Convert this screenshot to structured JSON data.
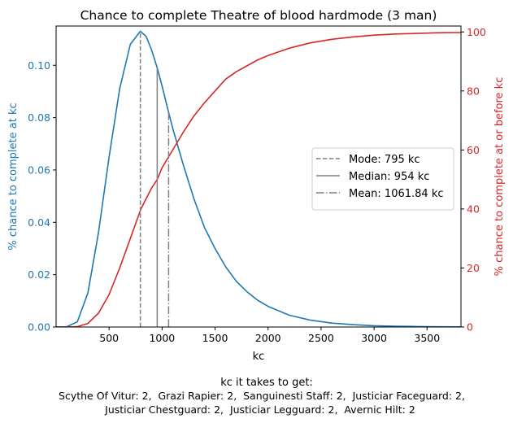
{
  "chart_data": {
    "type": "line",
    "title": "Chance to complete Theatre of blood hardmode (3 man)",
    "xlabel": "kc",
    "ylabel_left": "% chance to complete at kc",
    "ylabel_right": "% chance to complete at or before kc",
    "xlim": [
      0,
      3820
    ],
    "ylim_left": [
      0,
      0.115
    ],
    "ylim_right": [
      0,
      102
    ],
    "x_ticks": [
      500,
      1000,
      1500,
      2000,
      2500,
      3000,
      3500
    ],
    "y_left_ticks": [
      "0.00",
      "0.02",
      "0.04",
      "0.06",
      "0.08",
      "0.10"
    ],
    "y_right_ticks": [
      0,
      20,
      40,
      60,
      80,
      100
    ],
    "series": [
      {
        "axis": "left",
        "color": "#1f77b4",
        "x": [
          0,
          100,
          200,
          300,
          400,
          500,
          600,
          700,
          795,
          850,
          900,
          954,
          1000,
          1062,
          1100,
          1200,
          1300,
          1400,
          1500,
          1600,
          1700,
          1800,
          1900,
          2000,
          2200,
          2400,
          2600,
          2800,
          3000,
          3200,
          3400,
          3600,
          3820
        ],
        "y": [
          0,
          0.0001,
          0.002,
          0.013,
          0.036,
          0.065,
          0.091,
          0.108,
          0.113,
          0.111,
          0.106,
          0.099,
          0.092,
          0.082,
          0.076,
          0.062,
          0.049,
          0.038,
          0.03,
          0.023,
          0.0175,
          0.0135,
          0.0103,
          0.0079,
          0.0045,
          0.0026,
          0.0015,
          0.0009,
          0.0005,
          0.0003,
          0.00018,
          0.0001,
          5e-05
        ]
      },
      {
        "axis": "right",
        "color": "#d62728",
        "x": [
          0,
          100,
          200,
          300,
          400,
          500,
          600,
          700,
          800,
          900,
          954,
          1000,
          1100,
          1200,
          1300,
          1400,
          1500,
          1600,
          1700,
          1800,
          1900,
          2000,
          2200,
          2400,
          2600,
          2800,
          3000,
          3200,
          3400,
          3600,
          3820
        ],
        "y": [
          0,
          0,
          0.1,
          1.2,
          4.7,
          11,
          20,
          30,
          40,
          47,
          50,
          54,
          60,
          66,
          71.5,
          76,
          80,
          84,
          86.5,
          88.5,
          90.5,
          92,
          94.5,
          96.3,
          97.5,
          98.3,
          98.9,
          99.3,
          99.5,
          99.7,
          99.8
        ]
      }
    ],
    "vlines": [
      {
        "label": "Mode: 795 kc",
        "x": 795,
        "style": "dashed",
        "y_top": 0.113
      },
      {
        "label": "Median: 954 kc",
        "x": 954,
        "style": "solid",
        "y_top": 0.099
      },
      {
        "label": "Mean: 1061.84 kc",
        "x": 1061.84,
        "style": "dashdot",
        "y_top": 0.082
      }
    ],
    "vline_color": "#7f7f7f",
    "legend_position": "center-right",
    "footer_title": "kc it takes to get:",
    "footer_line1": "Scythe Of Vitur: 2,  Grazi Rapier: 2,  Sanguinesti Staff: 2,  Justiciar Faceguard: 2,",
    "footer_line2": "Justiciar Chestguard: 2,  Justiciar Legguard: 2,  Avernic Hilt: 2",
    "left_axis_color": "#1f77b4",
    "right_axis_color": "#d62728"
  }
}
